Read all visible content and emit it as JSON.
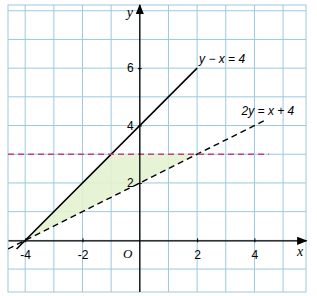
{
  "chart_data": {
    "type": "line",
    "x_label": "x",
    "y_label": "y",
    "annotations": [
      {
        "text": "O"
      }
    ],
    "xlim": [
      -4.6,
      5.8
    ],
    "ylim": [
      -1.8,
      8.2
    ],
    "xticks": [
      -4,
      -2,
      2,
      4
    ],
    "yticks": [
      2,
      4,
      6
    ],
    "grid": true,
    "series": [
      {
        "name": "y − x = 4",
        "color": "#000000",
        "line_style": "solid",
        "x": [
          -4.3,
          2
        ],
        "values": [
          -0.3,
          6
        ]
      },
      {
        "name": "2y = x + 4",
        "color": "#000000",
        "line_style": "dashed",
        "x": [
          -4.6,
          4.4
        ],
        "values": [
          -0.3,
          4.2
        ]
      },
      {
        "color": "#c8407f",
        "line_style": "dashed",
        "x": [
          -4.6,
          4.5
        ],
        "values": [
          3,
          3
        ]
      },
      {
        "type": "area",
        "color": "#e3f2cf",
        "x": [
          -4,
          -1,
          2
        ],
        "values": [
          0,
          3,
          3
        ]
      }
    ]
  }
}
